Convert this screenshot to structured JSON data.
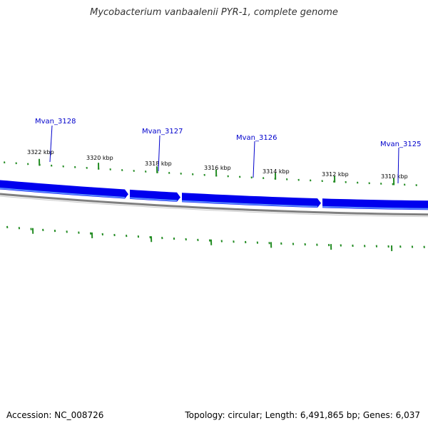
{
  "title": "Mycobacterium vanbaalenii PYR-1, complete genome",
  "accession_text": "Accession: NC_008726",
  "summary_text": "Topology: circular; Length: 6,491,865 bp; Genes: 6,037",
  "colors": {
    "gene_fill": "#0000ee",
    "gene_highlight": "#5a8cff",
    "gene_label": "#0000cc",
    "tick_green": "#238c23",
    "backbone": "#808080"
  },
  "ticks": [
    {
      "label": "3322 kbp"
    },
    {
      "label": "3320 kbp"
    },
    {
      "label": "3318 kbp"
    },
    {
      "label": "3316 kbp"
    },
    {
      "label": "3314 kbp"
    },
    {
      "label": "3312 kbp"
    },
    {
      "label": "3310 kbp"
    }
  ],
  "genes": [
    {
      "name": "Mvan_3128"
    },
    {
      "name": "Mvan_3127"
    },
    {
      "name": "Mvan_3126"
    },
    {
      "name": "Mvan_3125"
    }
  ]
}
